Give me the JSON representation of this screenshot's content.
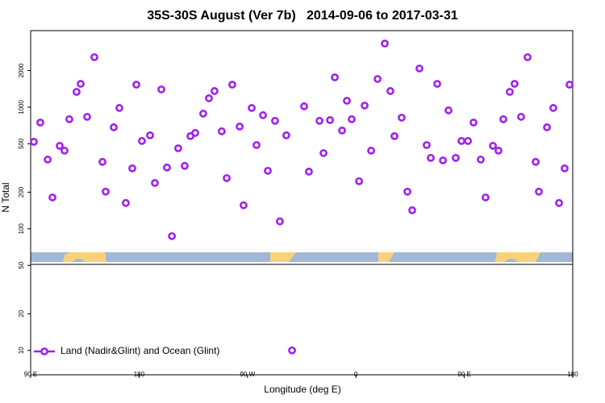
{
  "chart_data": {
    "type": "scatter",
    "title": "35S-30S August (Ver 7b)   2014-09-06 to 2017-03-31",
    "x_label": "Longitude (deg E)",
    "y_label": "N Total",
    "log_y": true,
    "legend": "bottom-left",
    "xlim": [
      90,
      450
    ],
    "ylim": [
      6.3,
      4260
    ],
    "xticks": [
      {
        "value": 90,
        "label": "90 E"
      },
      180,
      {
        "value": 270,
        "label": "90 W"
      },
      {
        "value": 360,
        "label": "0"
      },
      {
        "value": 450,
        "label": "90 E"
      },
      {
        "value": 540,
        "label": "180"
      }
    ],
    "yticks": [
      10,
      20,
      50,
      100,
      200,
      500,
      1000,
      2000
    ],
    "series": [
      {
        "name": "Land (Nadir&Glint) and Ocean (Glint)",
        "color": "#a020f0",
        "x": [
          92.1,
          96.4,
          101.3,
          104.5,
          109.3,
          112.5,
          115.7,
          120.5,
          123.2,
          127.5,
          132.3,
          137.7,
          139.8,
          145.2,
          148.9,
          153.2,
          157.5,
          160.2,
          163.9,
          169.3,
          172.5,
          176.8,
          180.5,
          183.8,
          188.0,
          192.3,
          196.1,
          199.3,
          204.6,
          208.4,
          212.1,
          216.9,
          220.2,
          223.9,
          228.8,
          231.4,
          236.8,
          240.0,
          244.3,
          247.5,
          252.3,
          255.5,
          259.8,
          263.6,
          271.6,
          274.8,
          281.8,
          284.5,
          288.8,
          292.0,
          296.8,
          300.0,
          303.2,
          308.1,
          311.8,
          316.1,
          320.4,
          325.2,
          328.9,
          331.6,
          336.4,
          340.2,
          343.4,
          348.2,
          353.0,
          355.7,
          360.0,
          363.8,
          367.5,
          372.3,
          376.1,
          380.4,
          384.1,
          388.9,
          392.1,
          397.0,
          400.7,
          403.9,
          408.2,
          411.4,
          415.7,
          420.0,
          425.4,
          427.5,
          432.9,
          437.1,
          440.9,
          444.6,
          447.9
        ],
        "values": [
          519,
          748,
          371,
          181,
          481,
          439,
          796,
          1336,
          1556,
          833,
          2575,
          355,
          202,
          683,
          985,
          163,
          314,
          1532,
          527,
          587,
          238,
          1399,
          319,
          87,
          459,
          329,
          578,
          614,
          885,
          1183,
          1357,
          633,
          261,
          1532,
          693,
          156,
          985,
          488,
          859,
          300,
          772,
          115,
          587,
          10,
          1016,
          295,
          772,
          419,
          783,
          1758,
          643,
          1129,
          796,
          246,
          1031,
          439,
          1706,
          3336,
          1357,
          578,
          820,
          202,
          142,
          2080,
          488,
          383,
          1556,
          365,
          941,
          383,
          527,
          527,
          748,
          371,
          181,
          481,
          439,
          796,
          1336,
          1556,
          833,
          2575,
          355,
          202,
          683,
          985,
          163,
          314,
          1532
        ]
      }
    ]
  }
}
